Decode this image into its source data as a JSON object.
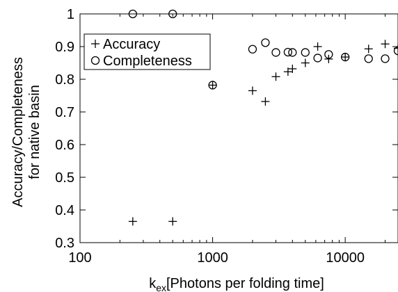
{
  "chart_data": {
    "type": "scatter",
    "title": "",
    "xlabel_main": "k",
    "xlabel_sub": "ex",
    "xlabel_rest": "[Photons per folding time]",
    "ylabel_line1": "Accuracy/Completeness",
    "ylabel_line2": "for native basin",
    "x_scale": "log",
    "xlim": [
      100,
      25000
    ],
    "ylim": [
      0.3,
      1.0
    ],
    "x_ticks": [
      100,
      1000,
      10000
    ],
    "x_tick_labels": [
      "100",
      "1000",
      "10000"
    ],
    "y_ticks": [
      0.3,
      0.4,
      0.5,
      0.6,
      0.7,
      0.8,
      0.9,
      1.0
    ],
    "y_tick_labels": [
      "0.3",
      "0.4",
      "0.5",
      "0.6",
      "0.7",
      "0.8",
      "0.9",
      "1"
    ],
    "grid": false,
    "legend_position": "top-left",
    "series": [
      {
        "name": "Accuracy",
        "marker": "plus",
        "points": [
          [
            250,
            0.365
          ],
          [
            500,
            0.365
          ],
          [
            1000,
            0.782
          ],
          [
            2000,
            0.765
          ],
          [
            2500,
            0.732
          ],
          [
            3000,
            0.808
          ],
          [
            3700,
            0.823
          ],
          [
            4000,
            0.832
          ],
          [
            5000,
            0.85
          ],
          [
            6200,
            0.9
          ],
          [
            7500,
            0.862
          ],
          [
            10000,
            0.868
          ],
          [
            15000,
            0.893
          ],
          [
            20000,
            0.908
          ],
          [
            25000,
            0.895
          ]
        ]
      },
      {
        "name": "Completeness",
        "marker": "circle",
        "points": [
          [
            250,
            1.0
          ],
          [
            500,
            1.0
          ],
          [
            1000,
            0.782
          ],
          [
            2000,
            0.892
          ],
          [
            2500,
            0.912
          ],
          [
            3000,
            0.882
          ],
          [
            3700,
            0.883
          ],
          [
            4000,
            0.882
          ],
          [
            5000,
            0.882
          ],
          [
            6200,
            0.865
          ],
          [
            7500,
            0.876
          ],
          [
            10000,
            0.868
          ],
          [
            15000,
            0.863
          ],
          [
            20000,
            0.863
          ],
          [
            25000,
            0.887
          ]
        ]
      }
    ]
  }
}
